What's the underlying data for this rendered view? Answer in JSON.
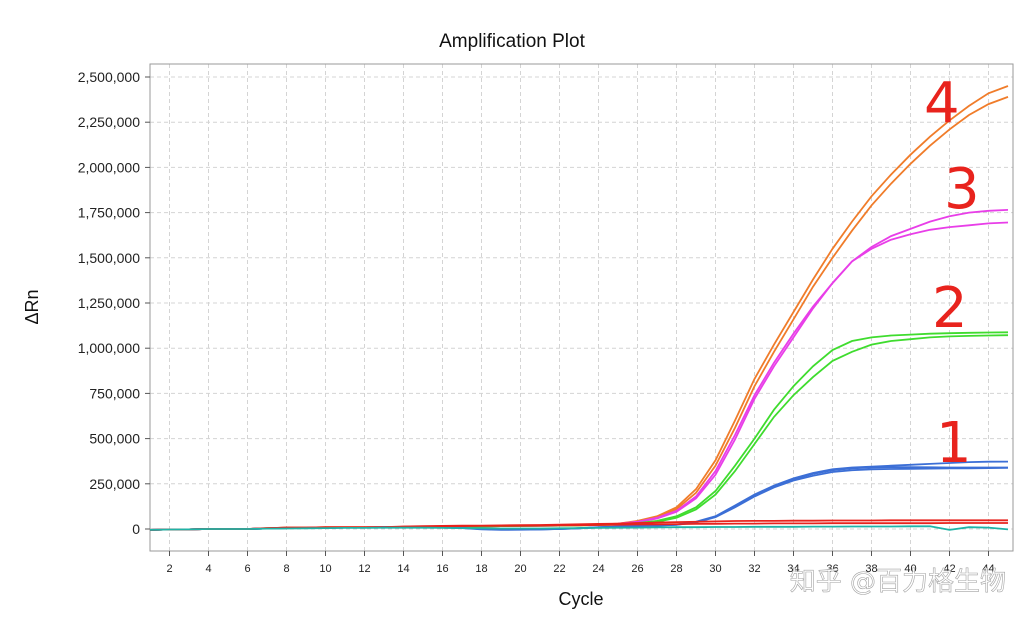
{
  "chart_data": {
    "type": "line",
    "title": "Amplification Plot",
    "xlabel": "Cycle",
    "ylabel": "ΔRn",
    "xlim": [
      1,
      45
    ],
    "ylim": [
      -100000,
      2600000
    ],
    "x_ticks": [
      2,
      4,
      6,
      8,
      10,
      12,
      14,
      16,
      18,
      20,
      22,
      24,
      26,
      28,
      30,
      32,
      34,
      36,
      38,
      40,
      42,
      44
    ],
    "x_tick_labels": [
      "2",
      "4",
      "6",
      "8",
      "10",
      "12",
      "14",
      "16",
      "18",
      "20",
      "22",
      "24",
      "26",
      "28",
      "30",
      "32",
      "34",
      "36",
      "38",
      "40",
      "42",
      "44"
    ],
    "y_ticks": [
      0,
      250000,
      500000,
      750000,
      1000000,
      1250000,
      1500000,
      1750000,
      2000000,
      2250000,
      2500000
    ],
    "y_tick_labels": [
      "0",
      "250,000",
      "500,000",
      "750,000",
      "1,000,000",
      "1,250,000",
      "1,500,000",
      "1,750,000",
      "2,000,000",
      "2,250,000",
      "2,500,000"
    ],
    "grid": true,
    "x": [
      1,
      2,
      3,
      4,
      5,
      6,
      7,
      8,
      9,
      10,
      11,
      12,
      13,
      14,
      15,
      16,
      17,
      18,
      19,
      20,
      21,
      22,
      23,
      24,
      25,
      26,
      27,
      28,
      29,
      30,
      31,
      32,
      33,
      34,
      35,
      36,
      37,
      38,
      39,
      40,
      41,
      42,
      43,
      44,
      45
    ],
    "series": [
      {
        "color": "#f07c2a",
        "values": [
          -5000,
          -3000,
          -2000,
          0,
          0,
          0,
          5000,
          8000,
          8000,
          10000,
          10000,
          10000,
          10000,
          12000,
          13000,
          14000,
          15000,
          16000,
          17000,
          18000,
          19000,
          20000,
          22000,
          25000,
          30000,
          45000,
          70000,
          120000,
          220000,
          380000,
          600000,
          830000,
          1020000,
          1200000,
          1380000,
          1550000,
          1700000,
          1840000,
          1960000,
          2070000,
          2170000,
          2260000,
          2340000,
          2410000,
          2450000
        ]
      },
      {
        "color": "#f07c2a",
        "values": [
          -5000,
          -3000,
          -2000,
          0,
          0,
          0,
          4000,
          7000,
          7000,
          9000,
          9000,
          9000,
          10000,
          11000,
          12000,
          13000,
          14000,
          15000,
          16000,
          17000,
          18000,
          19000,
          21000,
          24000,
          29000,
          42000,
          65000,
          110000,
          200000,
          350000,
          560000,
          790000,
          980000,
          1160000,
          1340000,
          1500000,
          1650000,
          1790000,
          1910000,
          2020000,
          2120000,
          2210000,
          2290000,
          2350000,
          2390000
        ]
      },
      {
        "color": "#e83ee8",
        "values": [
          -5000,
          -3000,
          -2000,
          0,
          0,
          0,
          3000,
          5000,
          6000,
          7000,
          8000,
          9000,
          10000,
          11000,
          12000,
          13000,
          14000,
          15000,
          16000,
          17000,
          18000,
          19000,
          21000,
          24000,
          29000,
          40000,
          62000,
          100000,
          180000,
          320000,
          520000,
          740000,
          920000,
          1080000,
          1230000,
          1360000,
          1480000,
          1560000,
          1620000,
          1660000,
          1700000,
          1730000,
          1750000,
          1760000,
          1765000
        ]
      },
      {
        "color": "#e83ee8",
        "values": [
          -5000,
          -3000,
          -2000,
          0,
          0,
          0,
          3000,
          5000,
          6000,
          7000,
          8000,
          9000,
          10000,
          11000,
          12000,
          13000,
          14000,
          15000,
          16000,
          17000,
          18000,
          19000,
          21000,
          24000,
          28000,
          38000,
          58000,
          95000,
          170000,
          300000,
          495000,
          720000,
          900000,
          1060000,
          1220000,
          1360000,
          1480000,
          1550000,
          1600000,
          1630000,
          1655000,
          1670000,
          1680000,
          1690000,
          1695000
        ]
      },
      {
        "color": "#3fdc2e",
        "values": [
          -5000,
          -3000,
          -2000,
          0,
          0,
          0,
          3000,
          5000,
          6000,
          7000,
          8000,
          9000,
          10000,
          11000,
          12000,
          13000,
          14000,
          15000,
          16000,
          17000,
          18000,
          19000,
          20000,
          22000,
          25000,
          32000,
          45000,
          70000,
          120000,
          210000,
          350000,
          500000,
          660000,
          790000,
          900000,
          990000,
          1040000,
          1060000,
          1070000,
          1075000,
          1080000,
          1083000,
          1085000,
          1087000,
          1088000
        ]
      },
      {
        "color": "#3fdc2e",
        "values": [
          -5000,
          -3000,
          -2000,
          0,
          0,
          0,
          3000,
          5000,
          6000,
          7000,
          8000,
          9000,
          10000,
          11000,
          12000,
          13000,
          14000,
          15000,
          16000,
          17000,
          18000,
          19000,
          20000,
          22000,
          24000,
          30000,
          40000,
          62000,
          108000,
          190000,
          320000,
          470000,
          620000,
          740000,
          840000,
          930000,
          980000,
          1020000,
          1040000,
          1050000,
          1060000,
          1065000,
          1068000,
          1070000,
          1072000
        ]
      },
      {
        "color": "#3c6fd6",
        "values": [
          -5000,
          -3000,
          -2000,
          0,
          0,
          0,
          3000,
          5000,
          6000,
          7000,
          8000,
          9000,
          10000,
          11000,
          10000,
          8000,
          5000,
          -2000,
          -5000,
          -4000,
          -3000,
          0,
          5000,
          10000,
          14000,
          17000,
          20000,
          25000,
          40000,
          70000,
          130000,
          190000,
          240000,
          280000,
          310000,
          330000,
          340000,
          345000,
          350000,
          355000,
          360000,
          365000,
          370000,
          372000,
          373000
        ]
      },
      {
        "color": "#3c6fd6",
        "values": [
          -5000,
          -3000,
          -2000,
          0,
          0,
          0,
          3000,
          5000,
          6000,
          7000,
          8000,
          9000,
          10000,
          10000,
          10000,
          9000,
          6000,
          0,
          -3000,
          -3000,
          -2000,
          0,
          4000,
          9000,
          13000,
          16000,
          19000,
          24000,
          38000,
          68000,
          125000,
          185000,
          235000,
          275000,
          305000,
          325000,
          335000,
          340000,
          342000,
          342000,
          341000,
          340000,
          340000,
          340000,
          340000
        ]
      },
      {
        "color": "#3c6fd6",
        "values": [
          -5000,
          -3000,
          -2000,
          0,
          0,
          0,
          3000,
          5000,
          6000,
          7000,
          8000,
          9000,
          10000,
          10000,
          10000,
          9000,
          6000,
          0,
          -3000,
          -3000,
          -2000,
          0,
          4000,
          9000,
          13000,
          16000,
          19000,
          23000,
          36000,
          66000,
          120000,
          180000,
          230000,
          268000,
          295000,
          315000,
          325000,
          330000,
          332000,
          333000,
          334000,
          335000,
          336000,
          337000,
          338000
        ]
      },
      {
        "color": "#e8231d",
        "values": [
          -5000,
          -3000,
          -2000,
          0,
          0,
          0,
          5000,
          8000,
          8000,
          10000,
          10000,
          10000,
          10000,
          14000,
          16000,
          17000,
          18000,
          19000,
          20000,
          21000,
          22000,
          24000,
          26000,
          28000,
          30000,
          33000,
          36000,
          38000,
          40000,
          42000,
          44000,
          45000,
          45000,
          46000,
          46000,
          47000,
          47000,
          47000,
          48000,
          48000,
          48000,
          48000,
          48000,
          48000,
          48000
        ]
      },
      {
        "color": "#e8231d",
        "values": [
          -5000,
          -3000,
          -2000,
          0,
          0,
          0,
          4000,
          7000,
          7000,
          9000,
          9000,
          9000,
          9000,
          12000,
          14000,
          15000,
          16000,
          17000,
          17000,
          18000,
          19000,
          20000,
          21000,
          22000,
          24000,
          25000,
          26000,
          27000,
          28000,
          29000,
          30000,
          30000,
          31000,
          31000,
          31000,
          32000,
          32000,
          32000,
          32000,
          32000,
          32000,
          33000,
          33000,
          33000,
          33000
        ]
      },
      {
        "color": "#1fb3a6",
        "values": [
          -5000,
          -3000,
          -2000,
          0,
          0,
          0,
          2000,
          3000,
          4000,
          5000,
          6000,
          6000,
          7000,
          7000,
          7000,
          6000,
          5000,
          4000,
          3000,
          3000,
          3000,
          4000,
          5000,
          6000,
          7000,
          8000,
          9000,
          10000,
          10000,
          11000,
          11000,
          12000,
          12000,
          12000,
          13000,
          13000,
          14000,
          14000,
          14000,
          15000,
          15000,
          -5000,
          10000,
          8000,
          -2000
        ]
      }
    ]
  },
  "annotations": [
    "4",
    "3",
    "2",
    "1"
  ],
  "watermark": "知乎 @百力格生物"
}
